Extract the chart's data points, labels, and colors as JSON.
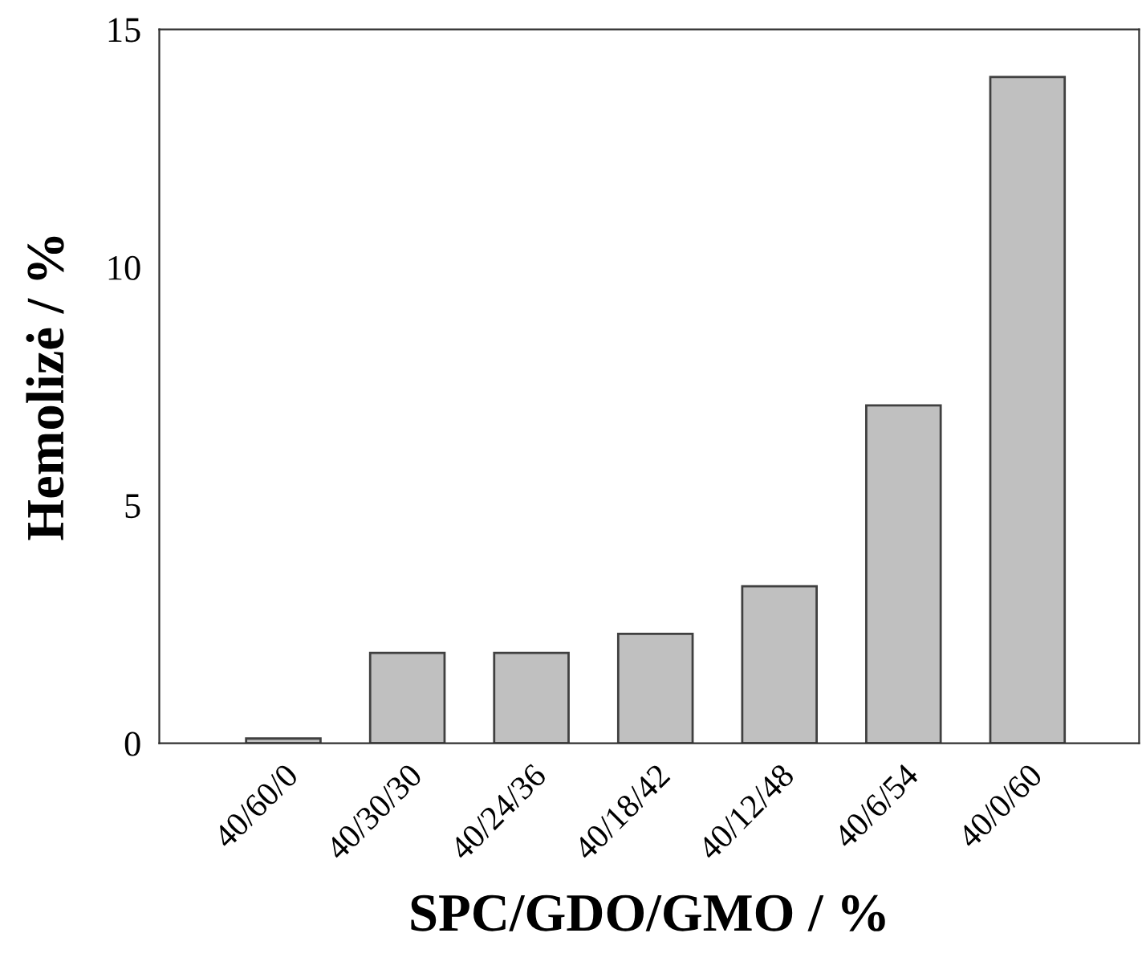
{
  "chart_data": {
    "type": "bar",
    "xlabel": "SPC/GDO/GMO / %",
    "ylabel": "Hemolizė / %",
    "categories": [
      "40/60/0",
      "40/30/30",
      "40/24/36",
      "40/18/42",
      "40/12/48",
      "40/6/54",
      "40/0/60"
    ],
    "values": [
      0.1,
      1.9,
      1.9,
      2.3,
      3.3,
      7.1,
      14.0
    ],
    "color": "#c0c0c0",
    "ylim": [
      0,
      15
    ],
    "yticks": [
      0,
      5,
      10,
      15
    ],
    "grid": false,
    "legend": false
  }
}
